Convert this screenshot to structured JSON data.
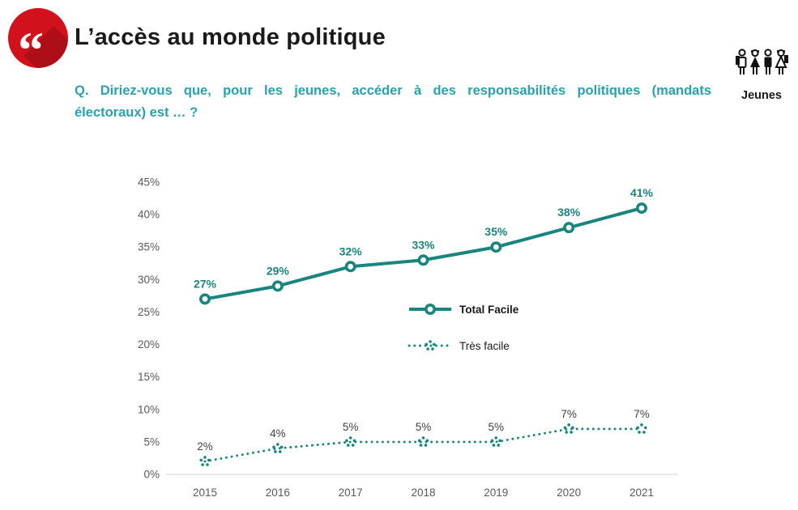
{
  "header": {
    "title": "L’accès au monde politique",
    "question_line1": "Q. Diriez-vous que, pour les jeunes, accéder à des responsabilités politiques (mandats",
    "question_line2": "électoraux) est … ?",
    "audience_label": "Jeunes"
  },
  "colors": {
    "accent_red": "#d1121c",
    "teal": "#1a857f",
    "question_cyan": "#2ba1af",
    "axis_text": "#595959",
    "axis_line": "#d9d9d9",
    "dotted_label": "#404040",
    "legend_text": "#1a1a1a"
  },
  "chart_data": {
    "type": "line",
    "title": "",
    "xlabel": "",
    "ylabel": "",
    "categories": [
      "2015",
      "2016",
      "2017",
      "2018",
      "2019",
      "2020",
      "2021"
    ],
    "series": [
      {
        "name": "Total Facile",
        "style": "solid",
        "values": [
          27,
          29,
          32,
          33,
          35,
          38,
          41
        ],
        "labels": [
          "27%",
          "29%",
          "32%",
          "33%",
          "35%",
          "38%",
          "41%"
        ]
      },
      {
        "name": "Très facile",
        "style": "dotted",
        "values": [
          2,
          4,
          5,
          5,
          5,
          7,
          7
        ],
        "labels": [
          "2%",
          "4%",
          "5%",
          "5%",
          "5%",
          "7%",
          "7%"
        ]
      }
    ],
    "yticks": [
      "0%",
      "5%",
      "10%",
      "15%",
      "20%",
      "25%",
      "30%",
      "35%",
      "40%",
      "45%"
    ],
    "ylim": [
      0,
      45
    ],
    "ytick_step": 5,
    "grid": false,
    "legend_position": "inside-middle-right"
  }
}
